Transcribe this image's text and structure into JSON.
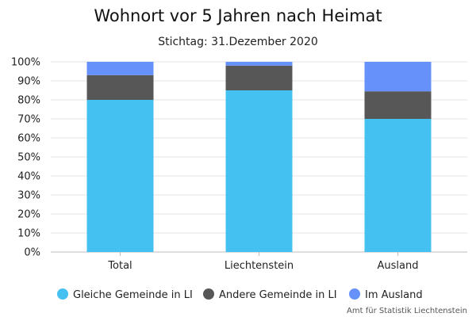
{
  "chart_data": {
    "type": "bar",
    "stacked": true,
    "title": "Wohnort vor 5 Jahren nach Heimat",
    "subtitle": "Stichtag: 31.Dezember 2020",
    "categories": [
      "Total",
      "Liechtenstein",
      "Ausland"
    ],
    "series": [
      {
        "name": "Gleiche Gemeinde in LI",
        "color": "#45c1f1",
        "values": [
          80,
          85,
          70
        ]
      },
      {
        "name": "Andere Gemeinde in LI",
        "color": "#575757",
        "values": [
          13,
          13,
          14.5
        ]
      },
      {
        "name": "Im Ausland",
        "color": "#6691fb",
        "values": [
          7,
          2,
          15.5
        ]
      }
    ],
    "ylim": [
      0,
      100
    ],
    "yticks": [
      "0%",
      "10%",
      "20%",
      "30%",
      "40%",
      "50%",
      "60%",
      "70%",
      "80%",
      "90%",
      "100%"
    ],
    "grid": true,
    "legend_position": "bottom",
    "credit": "Amt für Statistik Liechtenstein"
  }
}
